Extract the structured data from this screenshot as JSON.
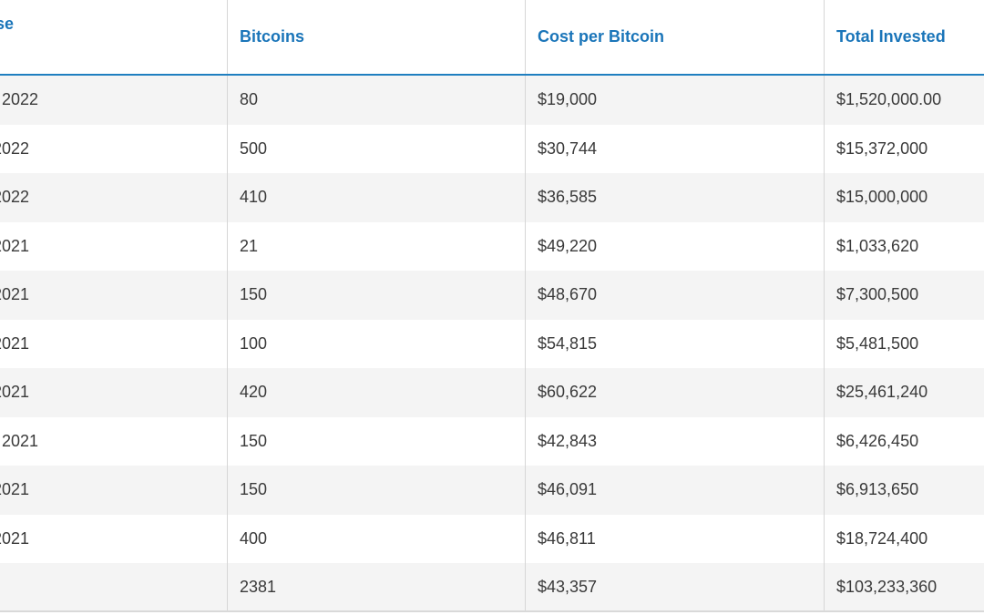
{
  "table": {
    "headers": [
      "se",
      "Bitcoins",
      "Cost per Bitcoin",
      "Total Invested"
    ],
    "rows": [
      {
        "date": ", 2022",
        "bitcoins": "80",
        "cost": "$19,000",
        "total": "$1,520,000.00"
      },
      {
        "date": "2022",
        "bitcoins": "500",
        "cost": "$30,744",
        "total": "$15,372,000"
      },
      {
        "date": " 2022",
        "bitcoins": "410",
        "cost": "$36,585",
        "total": "$15,000,000"
      },
      {
        "date": " 2021",
        "bitcoins": "21",
        "cost": "$49,220",
        "total": "$1,033,620"
      },
      {
        "date": "2021",
        "bitcoins": "150",
        "cost": "$48,670",
        "total": "$7,300,500"
      },
      {
        "date": " 2021",
        "bitcoins": "100",
        "cost": "$54,815",
        "total": "$5,481,500"
      },
      {
        "date": " 2021",
        "bitcoins": "420",
        "cost": "$60,622",
        "total": "$25,461,240"
      },
      {
        "date": ", 2021",
        "bitcoins": "150",
        "cost": "$42,843",
        "total": "$6,426,450"
      },
      {
        "date": " 2021",
        "bitcoins": "150",
        "cost": "$46,091",
        "total": "$6,913,650"
      },
      {
        "date": " 2021",
        "bitcoins": "400",
        "cost": "$46,811",
        "total": "$18,724,400"
      },
      {
        "date": "",
        "bitcoins": "2381",
        "cost": "$43,357",
        "total": "$103,233,360"
      }
    ]
  },
  "colors": {
    "header_text": "#1a75b9",
    "header_border": "#1f7fc0",
    "stripe": "#f4f4f4",
    "body_text": "#3a3a3a"
  }
}
